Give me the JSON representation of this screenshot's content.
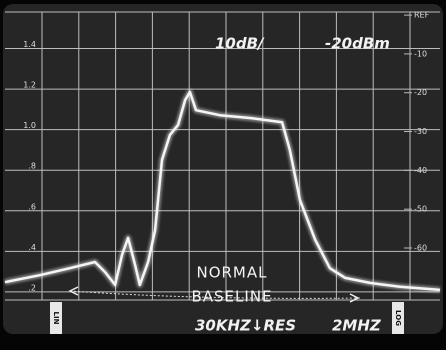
{
  "chart_data": {
    "type": "line",
    "annotations": [
      "10dB/",
      "-20dBm",
      "NORMAL",
      "BASELINE",
      "30KHZ↓RES",
      "2MHZ",
      "LIN",
      "LOG"
    ],
    "x": [
      0,
      8.0,
      14.9,
      20.7,
      23.0,
      25.3,
      26.9,
      28.3,
      29.9,
      31.0,
      32.9,
      34.5,
      36.1,
      37.9,
      39.8,
      41.4,
      42.5,
      43.9,
      49.4,
      56.3,
      63.7,
      65.5,
      67.8,
      71.3,
      74.7,
      78.2,
      83.9,
      90.8,
      100
    ],
    "series": [
      {
        "color": "#f5f5f5",
        "axis": "y2",
        "values": [
          -68.8,
          -67.0,
          -65.2,
          -63.6,
          -66.2,
          -69.5,
          -61.8,
          -57.4,
          -64.4,
          -69.5,
          -63.6,
          -55.4,
          -37.3,
          -30.9,
          -28.3,
          -21.9,
          -19.8,
          -24.5,
          -25.8,
          -26.5,
          -27.6,
          -34.8,
          -47.6,
          -57.9,
          -65.2,
          -67.7,
          -69.0,
          -70.0,
          -70.8
        ]
      }
    ],
    "xlim": [
      0,
      100
    ],
    "ylim": [
      0.16,
      1.58
    ],
    "yticks": [
      {
        "value": 0.2,
        "label": ".2"
      },
      {
        "value": 0.4,
        "label": ".4"
      },
      {
        "value": 0.6,
        "label": ".6"
      },
      {
        "value": 0.8,
        "label": ".8"
      },
      {
        "value": 1.0,
        "label": "1.0"
      },
      {
        "value": 1.2,
        "label": "1.2"
      },
      {
        "value": 1.4,
        "label": "1.4"
      }
    ],
    "y2lim": [
      -73.4,
      0.8
    ],
    "y2ticks": [
      {
        "value": 0,
        "label": "REF"
      },
      {
        "value": -10,
        "label": "-10"
      },
      {
        "value": -20,
        "label": "-20"
      },
      {
        "value": -30,
        "label": "-30"
      },
      {
        "value": -40,
        "label": "-40"
      },
      {
        "value": -50,
        "label": "-50"
      },
      {
        "value": -60,
        "label": "-60"
      }
    ],
    "grid": true
  }
}
